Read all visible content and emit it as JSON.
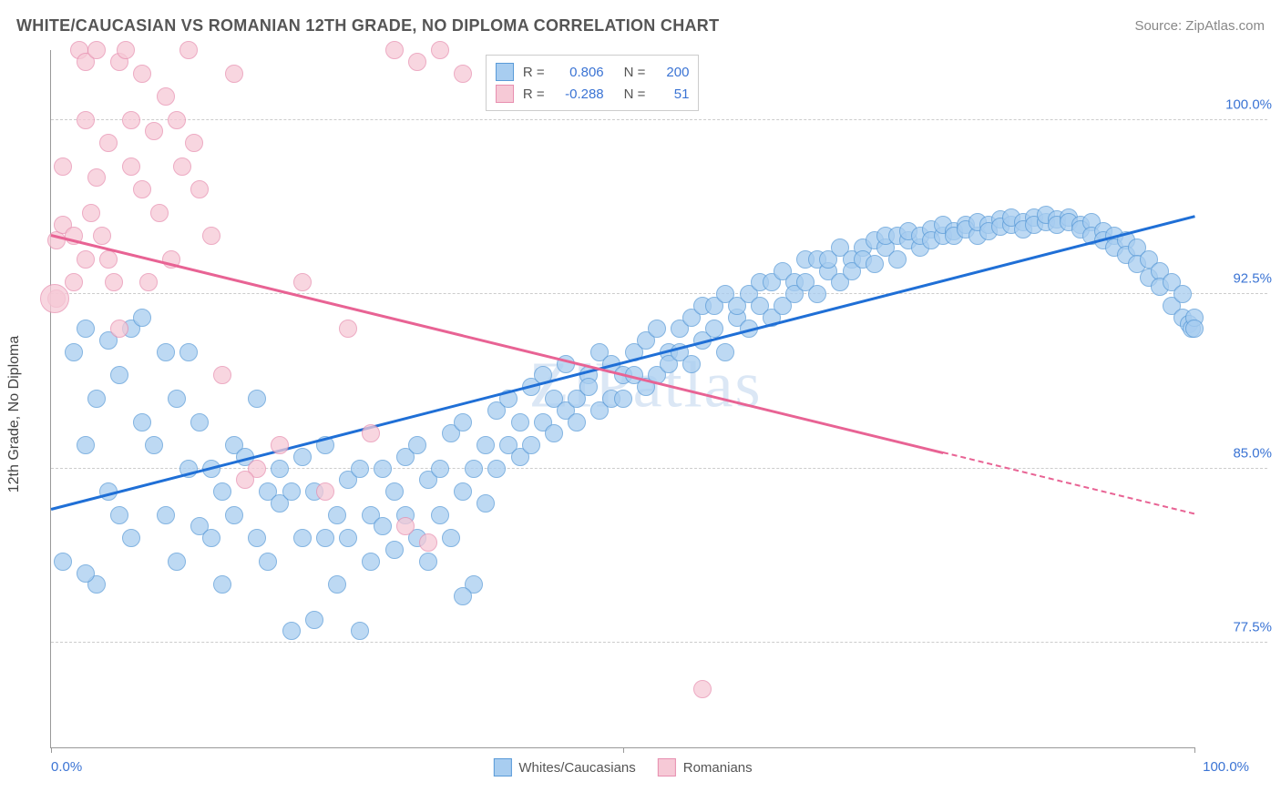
{
  "title": "WHITE/CAUCASIAN VS ROMANIAN 12TH GRADE, NO DIPLOMA CORRELATION CHART",
  "source": "Source: ZipAtlas.com",
  "ylabel": "12th Grade, No Diploma",
  "watermark_a": "ZIP",
  "watermark_b": "atlas",
  "chart": {
    "type": "scatter",
    "background_color": "#ffffff",
    "grid_color": "#cccccc",
    "axis_color": "#999999",
    "xlim": [
      0,
      100
    ],
    "ylim": [
      73,
      103
    ],
    "yticks": [
      77.5,
      85.0,
      92.5,
      100.0
    ],
    "ytick_labels": [
      "77.5%",
      "85.0%",
      "92.5%",
      "100.0%"
    ],
    "xtick_positions": [
      0,
      50,
      100
    ],
    "xaxis_left_label": "0.0%",
    "xaxis_right_label": "100.0%",
    "point_radius_base": 10,
    "series": [
      {
        "name": "Whites/Caucasians",
        "fill": "#a8cdf0",
        "stroke": "#5a9bd8",
        "line_color": "#1f6fd6",
        "r_label": "R =",
        "r_value": "0.806",
        "n_label": "N =",
        "n_value": "200",
        "trend": {
          "x1": 0,
          "y1": 83.2,
          "x2": 100,
          "y2": 95.8,
          "dash_after_x": 100
        },
        "points": [
          [
            1,
            81
          ],
          [
            2,
            90
          ],
          [
            3,
            86
          ],
          [
            3,
            91
          ],
          [
            4,
            80
          ],
          [
            4,
            88
          ],
          [
            5,
            84
          ],
          [
            5,
            90.5
          ],
          [
            6,
            83
          ],
          [
            6,
            89
          ],
          [
            7,
            82
          ],
          [
            7,
            91
          ],
          [
            8,
            87
          ],
          [
            8,
            91.5
          ],
          [
            9,
            86
          ],
          [
            10,
            90
          ],
          [
            10,
            83
          ],
          [
            11,
            81
          ],
          [
            11,
            88
          ],
          [
            12,
            85
          ],
          [
            12,
            90
          ],
          [
            13,
            82.5
          ],
          [
            13,
            87
          ],
          [
            14,
            82
          ],
          [
            14,
            85
          ],
          [
            15,
            80
          ],
          [
            15,
            84
          ],
          [
            16,
            86
          ],
          [
            16,
            83
          ],
          [
            17,
            85.5
          ],
          [
            18,
            82
          ],
          [
            18,
            88
          ],
          [
            19,
            84
          ],
          [
            19,
            81
          ],
          [
            20,
            85
          ],
          [
            20,
            83.5
          ],
          [
            21,
            78
          ],
          [
            21,
            84
          ],
          [
            22,
            85.5
          ],
          [
            22,
            82
          ],
          [
            23,
            84
          ],
          [
            23,
            78.5
          ],
          [
            24,
            82
          ],
          [
            24,
            86
          ],
          [
            25,
            83
          ],
          [
            25,
            80
          ],
          [
            26,
            84.5
          ],
          [
            26,
            82
          ],
          [
            27,
            78
          ],
          [
            27,
            85
          ],
          [
            28,
            83
          ],
          [
            28,
            81
          ],
          [
            29,
            85
          ],
          [
            29,
            82.5
          ],
          [
            30,
            81.5
          ],
          [
            30,
            84
          ],
          [
            31,
            83
          ],
          [
            31,
            85.5
          ],
          [
            32,
            82
          ],
          [
            32,
            86
          ],
          [
            33,
            81
          ],
          [
            33,
            84.5
          ],
          [
            34,
            85
          ],
          [
            34,
            83
          ],
          [
            35,
            82
          ],
          [
            35,
            86.5
          ],
          [
            36,
            87
          ],
          [
            36,
            84
          ],
          [
            37,
            80
          ],
          [
            37,
            85
          ],
          [
            38,
            86
          ],
          [
            38,
            83.5
          ],
          [
            39,
            87.5
          ],
          [
            39,
            85
          ],
          [
            40,
            86
          ],
          [
            40,
            88
          ],
          [
            41,
            87
          ],
          [
            41,
            85.5
          ],
          [
            42,
            88.5
          ],
          [
            42,
            86
          ],
          [
            43,
            87
          ],
          [
            43,
            89
          ],
          [
            44,
            86.5
          ],
          [
            44,
            88
          ],
          [
            45,
            87.5
          ],
          [
            45,
            89.5
          ],
          [
            46,
            88
          ],
          [
            46,
            87
          ],
          [
            47,
            89
          ],
          [
            47,
            88.5
          ],
          [
            48,
            87.5
          ],
          [
            48,
            90
          ],
          [
            49,
            88
          ],
          [
            49,
            89.5
          ],
          [
            50,
            89
          ],
          [
            50,
            88
          ],
          [
            51,
            90
          ],
          [
            51,
            89
          ],
          [
            52,
            88.5
          ],
          [
            52,
            90.5
          ],
          [
            53,
            89
          ],
          [
            53,
            91
          ],
          [
            54,
            90
          ],
          [
            54,
            89.5
          ],
          [
            55,
            91
          ],
          [
            55,
            90
          ],
          [
            56,
            89.5
          ],
          [
            56,
            91.5
          ],
          [
            57,
            92
          ],
          [
            57,
            90.5
          ],
          [
            58,
            91
          ],
          [
            58,
            92
          ],
          [
            59,
            90
          ],
          [
            59,
            92.5
          ],
          [
            60,
            91.5
          ],
          [
            60,
            92
          ],
          [
            61,
            92.5
          ],
          [
            61,
            91
          ],
          [
            62,
            93
          ],
          [
            62,
            92
          ],
          [
            63,
            91.5
          ],
          [
            63,
            93
          ],
          [
            64,
            92
          ],
          [
            64,
            93.5
          ],
          [
            65,
            93
          ],
          [
            65,
            92.5
          ],
          [
            66,
            94
          ],
          [
            66,
            93
          ],
          [
            67,
            92.5
          ],
          [
            67,
            94
          ],
          [
            68,
            93.5
          ],
          [
            68,
            94
          ],
          [
            69,
            93
          ],
          [
            69,
            94.5
          ],
          [
            70,
            94
          ],
          [
            70,
            93.5
          ],
          [
            71,
            94.5
          ],
          [
            71,
            94
          ],
          [
            72,
            93.8
          ],
          [
            72,
            94.8
          ],
          [
            73,
            94.5
          ],
          [
            73,
            95
          ],
          [
            74,
            94
          ],
          [
            74,
            95
          ],
          [
            75,
            94.8
          ],
          [
            75,
            95.2
          ],
          [
            76,
            94.5
          ],
          [
            76,
            95
          ],
          [
            77,
            95.3
          ],
          [
            77,
            94.8
          ],
          [
            78,
            95
          ],
          [
            78,
            95.5
          ],
          [
            79,
            95.2
          ],
          [
            79,
            95
          ],
          [
            80,
            95.5
          ],
          [
            80,
            95.3
          ],
          [
            81,
            95
          ],
          [
            81,
            95.6
          ],
          [
            82,
            95.5
          ],
          [
            82,
            95.2
          ],
          [
            83,
            95.7
          ],
          [
            83,
            95.4
          ],
          [
            84,
            95.5
          ],
          [
            84,
            95.8
          ],
          [
            85,
            95.6
          ],
          [
            85,
            95.3
          ],
          [
            86,
            95.8
          ],
          [
            86,
            95.5
          ],
          [
            87,
            95.6
          ],
          [
            87,
            95.9
          ],
          [
            88,
            95.7
          ],
          [
            88,
            95.5
          ],
          [
            89,
            95.8
          ],
          [
            89,
            95.6
          ],
          [
            90,
            95.5
          ],
          [
            90,
            95.3
          ],
          [
            91,
            95.6
          ],
          [
            91,
            95
          ],
          [
            92,
            95.2
          ],
          [
            92,
            94.8
          ],
          [
            93,
            95
          ],
          [
            93,
            94.5
          ],
          [
            94,
            94.8
          ],
          [
            94,
            94.2
          ],
          [
            95,
            94.5
          ],
          [
            95,
            93.8
          ],
          [
            96,
            94
          ],
          [
            96,
            93.2
          ],
          [
            97,
            93.5
          ],
          [
            97,
            92.8
          ],
          [
            98,
            93
          ],
          [
            98,
            92
          ],
          [
            99,
            92.5
          ],
          [
            99,
            91.5
          ],
          [
            99.5,
            91.2
          ],
          [
            99.8,
            91
          ],
          [
            100,
            91.5
          ],
          [
            100,
            91
          ],
          [
            36,
            79.5
          ],
          [
            3,
            80.5
          ]
        ]
      },
      {
        "name": "Romanians",
        "fill": "#f6c9d6",
        "stroke": "#e78fb0",
        "line_color": "#e86394",
        "r_label": "R =",
        "r_value": "-0.288",
        "n_label": "N =",
        "n_value": "51",
        "trend": {
          "x1": 0,
          "y1": 95,
          "x2": 100,
          "y2": 83,
          "dash_after_x": 78
        },
        "points": [
          [
            0.5,
            92.3
          ],
          [
            0.5,
            94.8
          ],
          [
            1,
            95.5
          ],
          [
            1,
            98
          ],
          [
            2,
            93
          ],
          [
            2,
            95
          ],
          [
            2.5,
            103
          ],
          [
            3,
            100
          ],
          [
            3,
            94
          ],
          [
            3,
            102.5
          ],
          [
            3.5,
            96
          ],
          [
            4,
            103
          ],
          [
            4,
            97.5
          ],
          [
            4.5,
            95
          ],
          [
            5,
            94
          ],
          [
            5,
            99
          ],
          [
            5.5,
            93
          ],
          [
            6,
            102.5
          ],
          [
            6,
            91
          ],
          [
            6.5,
            103
          ],
          [
            7,
            100
          ],
          [
            7,
            98
          ],
          [
            8,
            97
          ],
          [
            8,
            102
          ],
          [
            8.5,
            93
          ],
          [
            9,
            99.5
          ],
          [
            9.5,
            96
          ],
          [
            10,
            101
          ],
          [
            10.5,
            94
          ],
          [
            11,
            100
          ],
          [
            11.5,
            98
          ],
          [
            12,
            103
          ],
          [
            12.5,
            99
          ],
          [
            13,
            97
          ],
          [
            14,
            95
          ],
          [
            15,
            89
          ],
          [
            16,
            102
          ],
          [
            18,
            85
          ],
          [
            20,
            86
          ],
          [
            22,
            93
          ],
          [
            24,
            84
          ],
          [
            26,
            91
          ],
          [
            28,
            86.5
          ],
          [
            30,
            103
          ],
          [
            31,
            82.5
          ],
          [
            32,
            102.5
          ],
          [
            33,
            81.8
          ],
          [
            34,
            103
          ],
          [
            36,
            102
          ],
          [
            57,
            75.5
          ],
          [
            17,
            84.5
          ]
        ],
        "points_large": [
          [
            0.3,
            92.3,
            16
          ]
        ]
      }
    ],
    "series_legend": [
      {
        "label": "Whites/Caucasians",
        "fill": "#a8cdf0",
        "stroke": "#5a9bd8"
      },
      {
        "label": "Romanians",
        "fill": "#f6c9d6",
        "stroke": "#e78fb0"
      }
    ]
  }
}
